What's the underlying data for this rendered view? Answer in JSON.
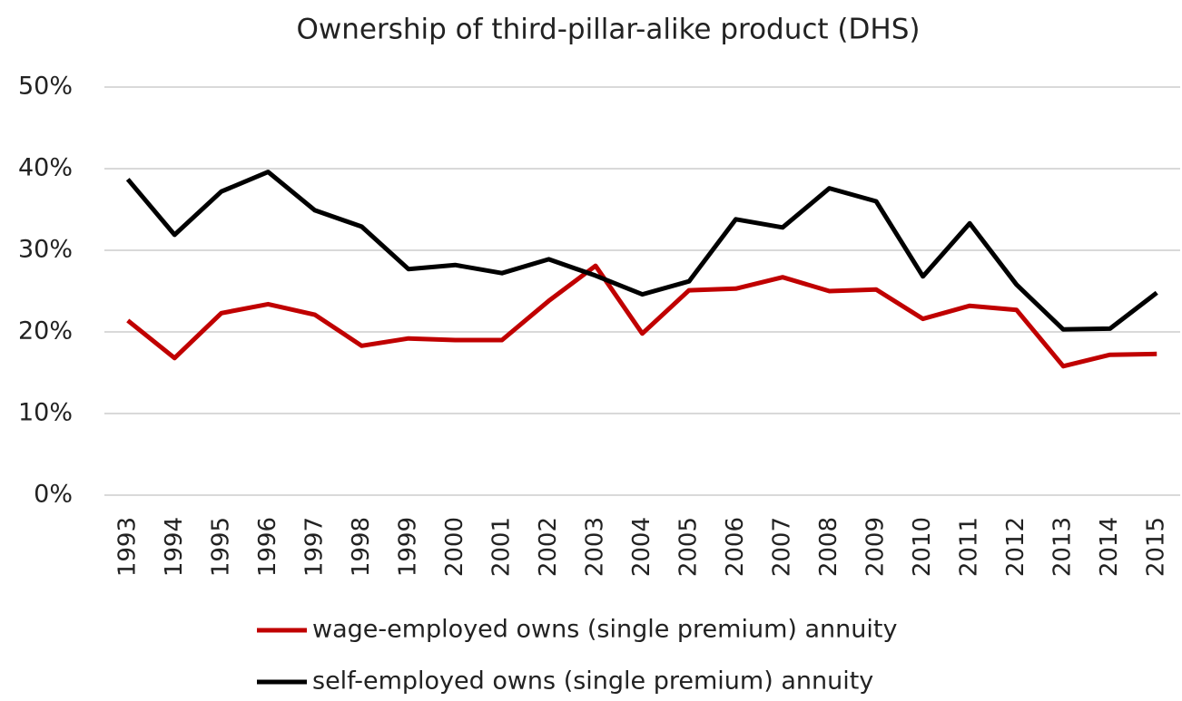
{
  "chart_data": {
    "type": "line",
    "title": "Ownership of third-pillar-alike product (DHS)",
    "categories": [
      "1993",
      "1994",
      "1995",
      "1996",
      "1997",
      "1998",
      "1999",
      "2000",
      "2001",
      "2002",
      "2003",
      "2004",
      "2005",
      "2006",
      "2007",
      "2008",
      "2009",
      "2010",
      "2011",
      "2012",
      "2013",
      "2014",
      "2015"
    ],
    "series": [
      {
        "name": "wage-employed owns (single premium) annuity",
        "color": "#c00000",
        "values": [
          21.4,
          16.8,
          22.3,
          23.4,
          22.1,
          18.3,
          19.2,
          19.0,
          19.0,
          23.8,
          28.1,
          19.8,
          25.1,
          25.3,
          26.7,
          25.0,
          25.2,
          21.6,
          23.2,
          22.7,
          15.8,
          17.2,
          17.3
        ]
      },
      {
        "name": "self-employed owns (single premium) annuity",
        "color": "#000000",
        "values": [
          38.7,
          31.9,
          37.2,
          39.6,
          34.9,
          32.9,
          27.7,
          28.2,
          27.2,
          28.9,
          26.9,
          24.6,
          26.2,
          33.8,
          32.8,
          37.6,
          36.0,
          26.8,
          33.3,
          25.8,
          20.3,
          20.4,
          24.8
        ]
      }
    ],
    "ylim": [
      0,
      50
    ],
    "yticks": [
      {
        "value": 0,
        "label": "0%"
      },
      {
        "value": 10,
        "label": "10%"
      },
      {
        "value": 20,
        "label": "20%"
      },
      {
        "value": 30,
        "label": "30%"
      },
      {
        "value": 40,
        "label": "40%"
      },
      {
        "value": 50,
        "label": "50%"
      }
    ],
    "grid": true,
    "legend": "bottom"
  }
}
